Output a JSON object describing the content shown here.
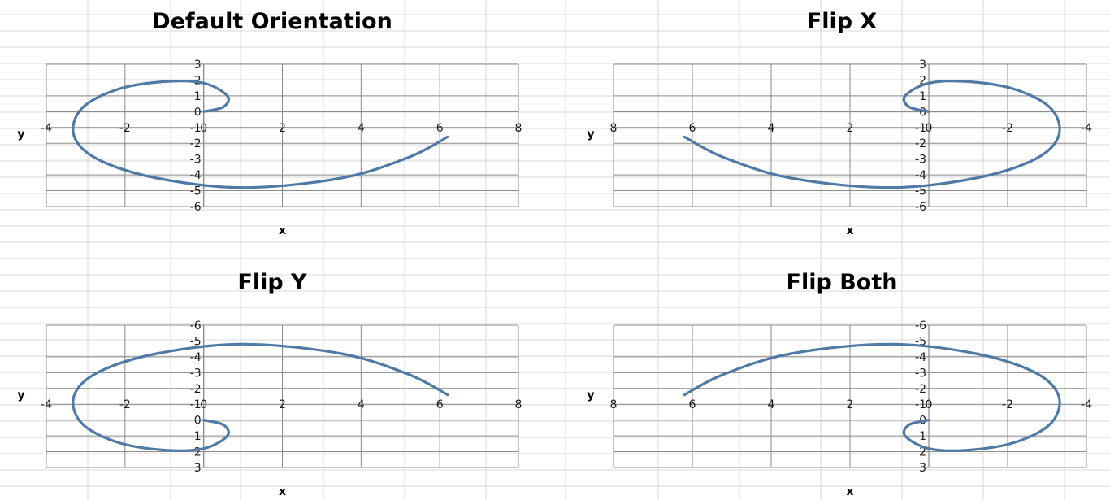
{
  "sheet": {
    "gridline_color": "#d9d9d9",
    "background": "#ffffff"
  },
  "chart_data": [
    {
      "type": "scatter",
      "title": "Default Orientation",
      "xlabel": "x",
      "ylabel": "y",
      "xlim": [
        -4,
        8
      ],
      "ylim": [
        -6,
        3
      ],
      "x_reversed": false,
      "y_reversed": false,
      "x_ticks": [
        -4,
        -2,
        0,
        2,
        4,
        6,
        8
      ],
      "y_ticks": [
        3,
        2,
        1,
        0,
        -1,
        -2,
        -3,
        -4,
        -5,
        -6
      ],
      "grid": true,
      "line_color": "#4f7aa5",
      "series": [
        {
          "x": [
            0.0,
            0.5,
            0.6,
            0.0,
            -1.0,
            -2.2,
            -3.1,
            -3.3,
            -2.7,
            -1.2,
            1.0,
            3.5,
            5.2,
            6.2
          ],
          "y": [
            0.0,
            0.3,
            1.0,
            1.8,
            1.9,
            1.4,
            0.2,
            -1.5,
            -3.0,
            -4.2,
            -4.8,
            -4.2,
            -2.9,
            -1.6
          ]
        }
      ]
    },
    {
      "type": "scatter",
      "title": "Flip X",
      "xlabel": "x",
      "ylabel": "y",
      "xlim": [
        -4,
        8
      ],
      "ylim": [
        -6,
        3
      ],
      "x_reversed": true,
      "y_reversed": false,
      "x_ticks": [
        8,
        6,
        4,
        2,
        0,
        -2,
        -4
      ],
      "y_ticks": [
        3,
        2,
        1,
        0,
        -1,
        -2,
        -3,
        -4,
        -5,
        -6
      ],
      "grid": true,
      "line_color": "#4f7aa5",
      "series": [
        {
          "x": [
            0.0,
            0.5,
            0.6,
            0.0,
            -1.0,
            -2.2,
            -3.1,
            -3.3,
            -2.7,
            -1.2,
            1.0,
            3.5,
            5.2,
            6.2
          ],
          "y": [
            0.0,
            0.3,
            1.0,
            1.8,
            1.9,
            1.4,
            0.2,
            -1.5,
            -3.0,
            -4.2,
            -4.8,
            -4.2,
            -2.9,
            -1.6
          ]
        }
      ]
    },
    {
      "type": "scatter",
      "title": "Flip Y",
      "xlabel": "x",
      "ylabel": "y",
      "xlim": [
        -4,
        8
      ],
      "ylim": [
        -6,
        3
      ],
      "x_reversed": false,
      "y_reversed": true,
      "x_ticks": [
        -4,
        -2,
        0,
        2,
        4,
        6,
        8
      ],
      "y_ticks": [
        -6,
        -5,
        -4,
        -3,
        -2,
        -1,
        0,
        1,
        2,
        3
      ],
      "grid": true,
      "line_color": "#4f7aa5",
      "series": [
        {
          "x": [
            0.0,
            0.5,
            0.6,
            0.0,
            -1.0,
            -2.2,
            -3.1,
            -3.3,
            -2.7,
            -1.2,
            1.0,
            3.5,
            5.2,
            6.2
          ],
          "y": [
            0.0,
            0.3,
            1.0,
            1.8,
            1.9,
            1.4,
            0.2,
            -1.5,
            -3.0,
            -4.2,
            -4.8,
            -4.2,
            -2.9,
            -1.6
          ]
        }
      ]
    },
    {
      "type": "scatter",
      "title": "Flip Both",
      "xlabel": "x",
      "ylabel": "y",
      "xlim": [
        -4,
        8
      ],
      "ylim": [
        -6,
        3
      ],
      "x_reversed": true,
      "y_reversed": true,
      "x_ticks": [
        8,
        6,
        4,
        2,
        0,
        -2,
        -4
      ],
      "y_ticks": [
        -6,
        -5,
        -4,
        -3,
        -2,
        -1,
        0,
        1,
        2,
        3
      ],
      "grid": true,
      "line_color": "#4f7aa5",
      "series": [
        {
          "x": [
            0.0,
            0.5,
            0.6,
            0.0,
            -1.0,
            -2.2,
            -3.1,
            -3.3,
            -2.7,
            -1.2,
            1.0,
            3.5,
            5.2,
            6.2
          ],
          "y": [
            0.0,
            0.3,
            1.0,
            1.8,
            1.9,
            1.4,
            0.2,
            -1.5,
            -3.0,
            -4.2,
            -4.8,
            -4.2,
            -2.9,
            -1.6
          ]
        }
      ]
    }
  ]
}
